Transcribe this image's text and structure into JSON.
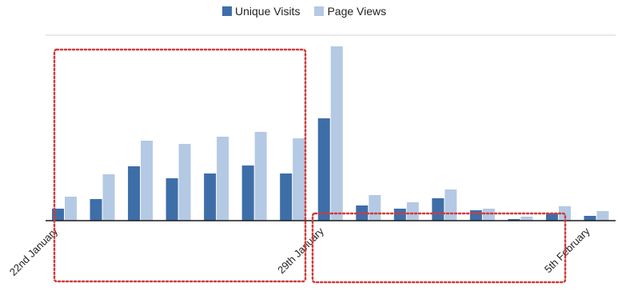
{
  "chart_data": {
    "type": "bar",
    "title": "",
    "xlabel": "",
    "ylabel": "",
    "legend_position": "top",
    "grid": false,
    "categories": [
      "22nd January",
      "",
      "",
      "",
      "",
      "",
      "",
      "29th January",
      "",
      "",
      "",
      "",
      "",
      "",
      "5th February"
    ],
    "tick_labels": [
      {
        "index": 0,
        "text": "22nd January"
      },
      {
        "index": 7,
        "text": "29th January"
      },
      {
        "index": 14,
        "text": "5th February"
      }
    ],
    "series": [
      {
        "name": "Unique Visits",
        "color": "#3e6ea8",
        "values": [
          15,
          27,
          68,
          53,
          59,
          69,
          59,
          128,
          19,
          15,
          28,
          13,
          2,
          9,
          6
        ]
      },
      {
        "name": "Page Views",
        "color": "#b4c9e3",
        "values": [
          30,
          58,
          100,
          96,
          105,
          111,
          103,
          218,
          32,
          23,
          39,
          15,
          5,
          18,
          12
        ]
      }
    ],
    "ylim": [
      0,
      230
    ],
    "annotations": [
      {
        "type": "dotted-rectangle",
        "color": "#d23a3a",
        "from_category": 0,
        "to_category": 6
      },
      {
        "type": "dotted-rectangle",
        "color": "#d23a3a",
        "from_category": 7,
        "to_category": 13
      }
    ]
  }
}
